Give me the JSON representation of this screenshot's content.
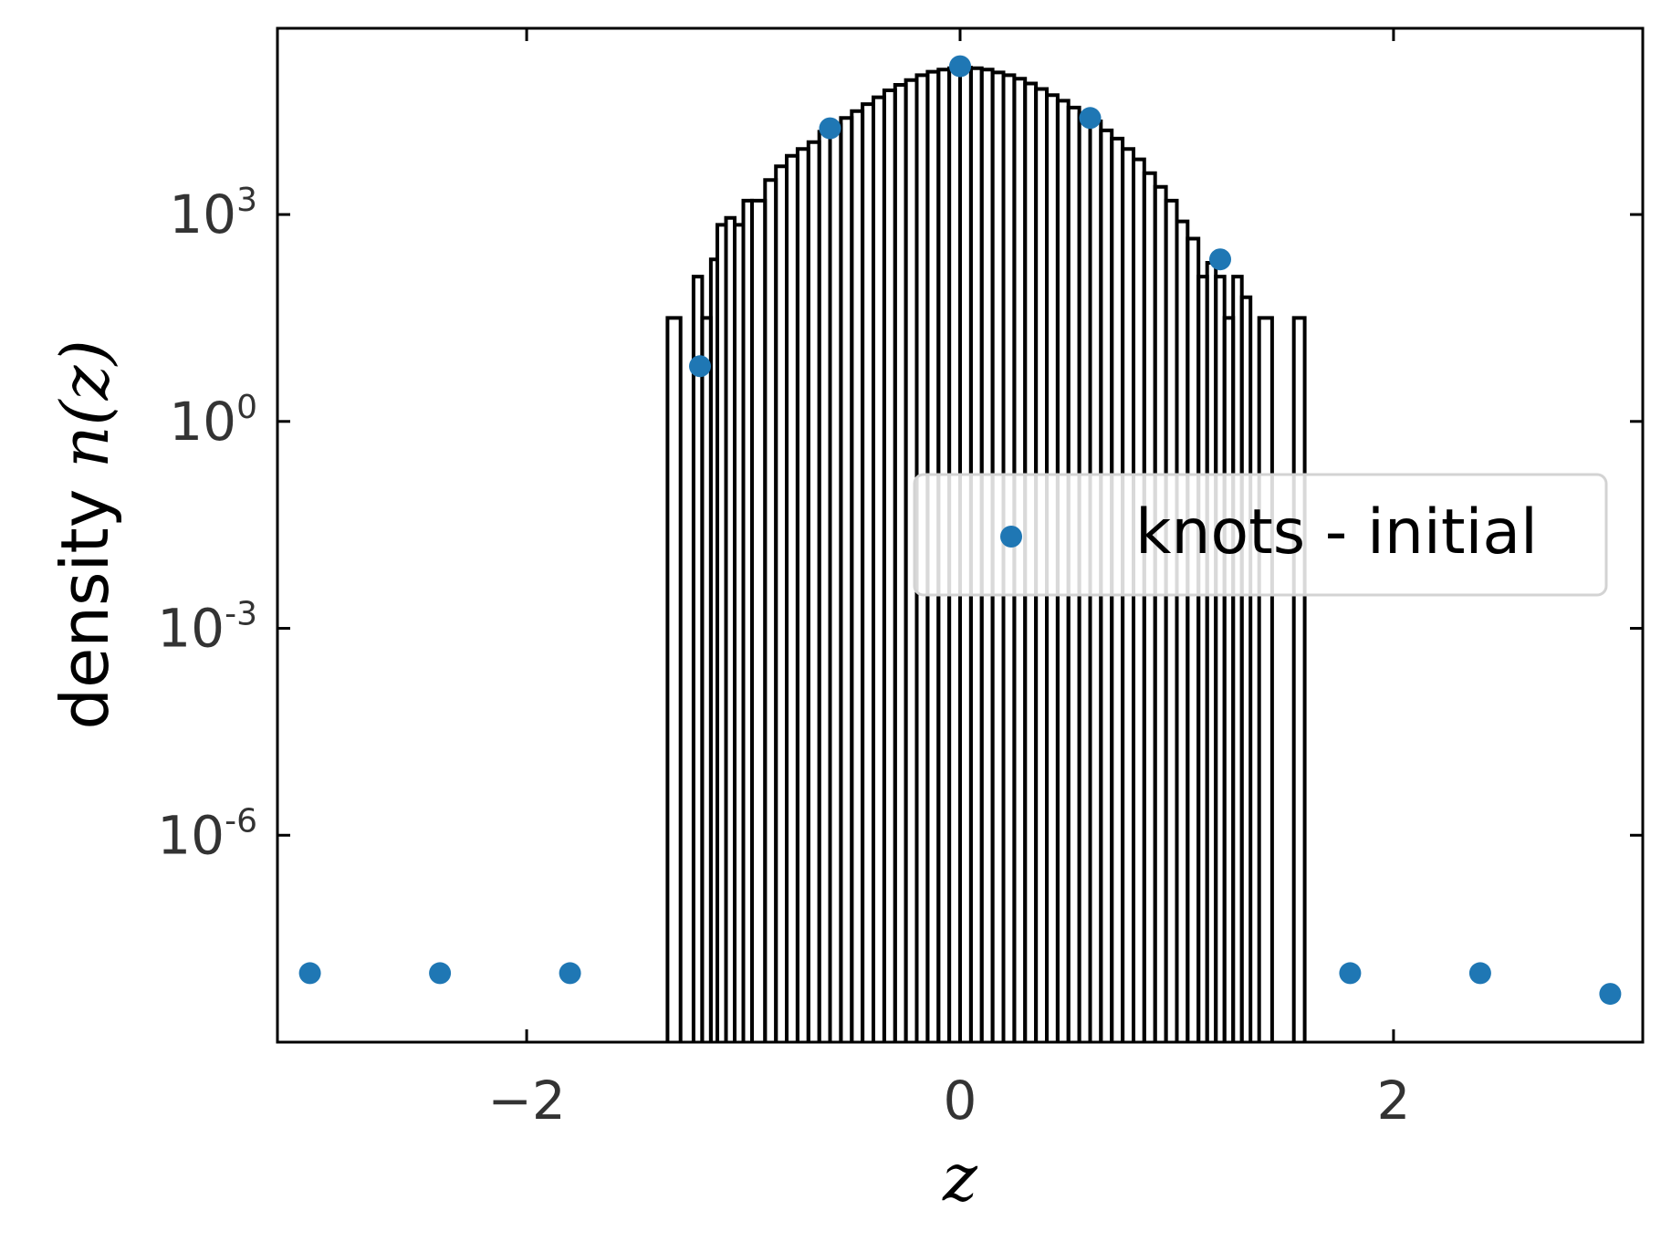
{
  "chart_data": {
    "type": "scatter",
    "xscale": "linear",
    "yscale": "log",
    "xlim": [
      -3.15,
      3.15
    ],
    "ylim_exp": [
      -9.0,
      5.7
    ],
    "grid": false,
    "legend_position": "center-right",
    "colors": {
      "knots": "#1f77b4",
      "histogram": "#000000",
      "axes": "#000000",
      "ticks_text": "#333333"
    },
    "xlabel": {
      "symbol": "z"
    },
    "ylabel": {
      "text": "density ",
      "symbol": "n(z)"
    },
    "x_ticks": [
      {
        "value": -2,
        "label": "−2"
      },
      {
        "value": 0,
        "label": "0"
      },
      {
        "value": 2,
        "label": "2"
      }
    ],
    "y_ticks": [
      {
        "exp": 3,
        "base": "10",
        "sup": "3"
      },
      {
        "exp": 0,
        "base": "10",
        "sup": "0"
      },
      {
        "exp": -3,
        "base": "10",
        "sup": "-3"
      },
      {
        "exp": -6,
        "base": "10",
        "sup": "-6"
      }
    ],
    "series": [
      {
        "name": "knots - initial",
        "kind": "scatter",
        "x": [
          -3.0,
          -2.4,
          -1.8,
          -1.2,
          -0.6,
          0.0,
          0.6,
          1.2,
          1.8,
          2.4,
          3.0
        ],
        "log10_y": [
          -8.0,
          -8.0,
          -8.0,
          0.8,
          4.25,
          5.15,
          4.4,
          2.35,
          -8.0,
          -8.0,
          -8.3
        ]
      },
      {
        "kind": "step-histogram",
        "bins": [
          [
            -1.35,
            -1.29,
            1.5
          ],
          [
            -1.23,
            -1.19,
            2.1
          ],
          [
            -1.19,
            -1.15,
            1.5
          ],
          [
            -1.15,
            -1.12,
            2.35
          ],
          [
            -1.12,
            -1.08,
            2.85
          ],
          [
            -1.08,
            -1.04,
            2.95
          ],
          [
            -1.04,
            -1.0,
            2.85
          ],
          [
            -1.0,
            -0.96,
            3.2
          ],
          [
            -0.96,
            -0.9,
            3.2
          ],
          [
            -0.9,
            -0.85,
            3.5
          ],
          [
            -0.85,
            -0.8,
            3.7
          ],
          [
            -0.8,
            -0.75,
            3.85
          ],
          [
            -0.75,
            -0.7,
            3.95
          ],
          [
            -0.7,
            -0.65,
            4.05
          ],
          [
            -0.65,
            -0.6,
            4.2
          ],
          [
            -0.6,
            -0.55,
            4.3
          ],
          [
            -0.55,
            -0.5,
            4.4
          ],
          [
            -0.5,
            -0.45,
            4.5
          ],
          [
            -0.45,
            -0.4,
            4.6
          ],
          [
            -0.4,
            -0.35,
            4.7
          ],
          [
            -0.35,
            -0.3,
            4.8
          ],
          [
            -0.3,
            -0.25,
            4.88
          ],
          [
            -0.25,
            -0.2,
            4.95
          ],
          [
            -0.2,
            -0.15,
            5.02
          ],
          [
            -0.15,
            -0.1,
            5.07
          ],
          [
            -0.1,
            -0.05,
            5.1
          ],
          [
            -0.05,
            0.0,
            5.12
          ],
          [
            0.0,
            0.05,
            5.13
          ],
          [
            0.05,
            0.1,
            5.12
          ],
          [
            0.1,
            0.15,
            5.1
          ],
          [
            0.15,
            0.2,
            5.06
          ],
          [
            0.2,
            0.25,
            5.02
          ],
          [
            0.25,
            0.3,
            4.97
          ],
          [
            0.3,
            0.35,
            4.9
          ],
          [
            0.35,
            0.4,
            4.82
          ],
          [
            0.4,
            0.45,
            4.73
          ],
          [
            0.45,
            0.5,
            4.65
          ],
          [
            0.5,
            0.55,
            4.55
          ],
          [
            0.55,
            0.6,
            4.45
          ],
          [
            0.6,
            0.65,
            4.35
          ],
          [
            0.65,
            0.7,
            4.22
          ],
          [
            0.7,
            0.75,
            4.1
          ],
          [
            0.75,
            0.8,
            3.95
          ],
          [
            0.8,
            0.85,
            3.8
          ],
          [
            0.85,
            0.9,
            3.6
          ],
          [
            0.9,
            0.95,
            3.4
          ],
          [
            0.95,
            1.0,
            3.2
          ],
          [
            1.0,
            1.05,
            2.9
          ],
          [
            1.05,
            1.1,
            2.65
          ],
          [
            1.1,
            1.14,
            2.1
          ],
          [
            1.14,
            1.18,
            2.3
          ],
          [
            1.18,
            1.22,
            2.1
          ],
          [
            1.22,
            1.26,
            1.5
          ],
          [
            1.26,
            1.3,
            2.1
          ],
          [
            1.3,
            1.34,
            1.8
          ],
          [
            1.38,
            1.44,
            1.5
          ],
          [
            1.54,
            1.59,
            1.5
          ]
        ]
      }
    ]
  }
}
